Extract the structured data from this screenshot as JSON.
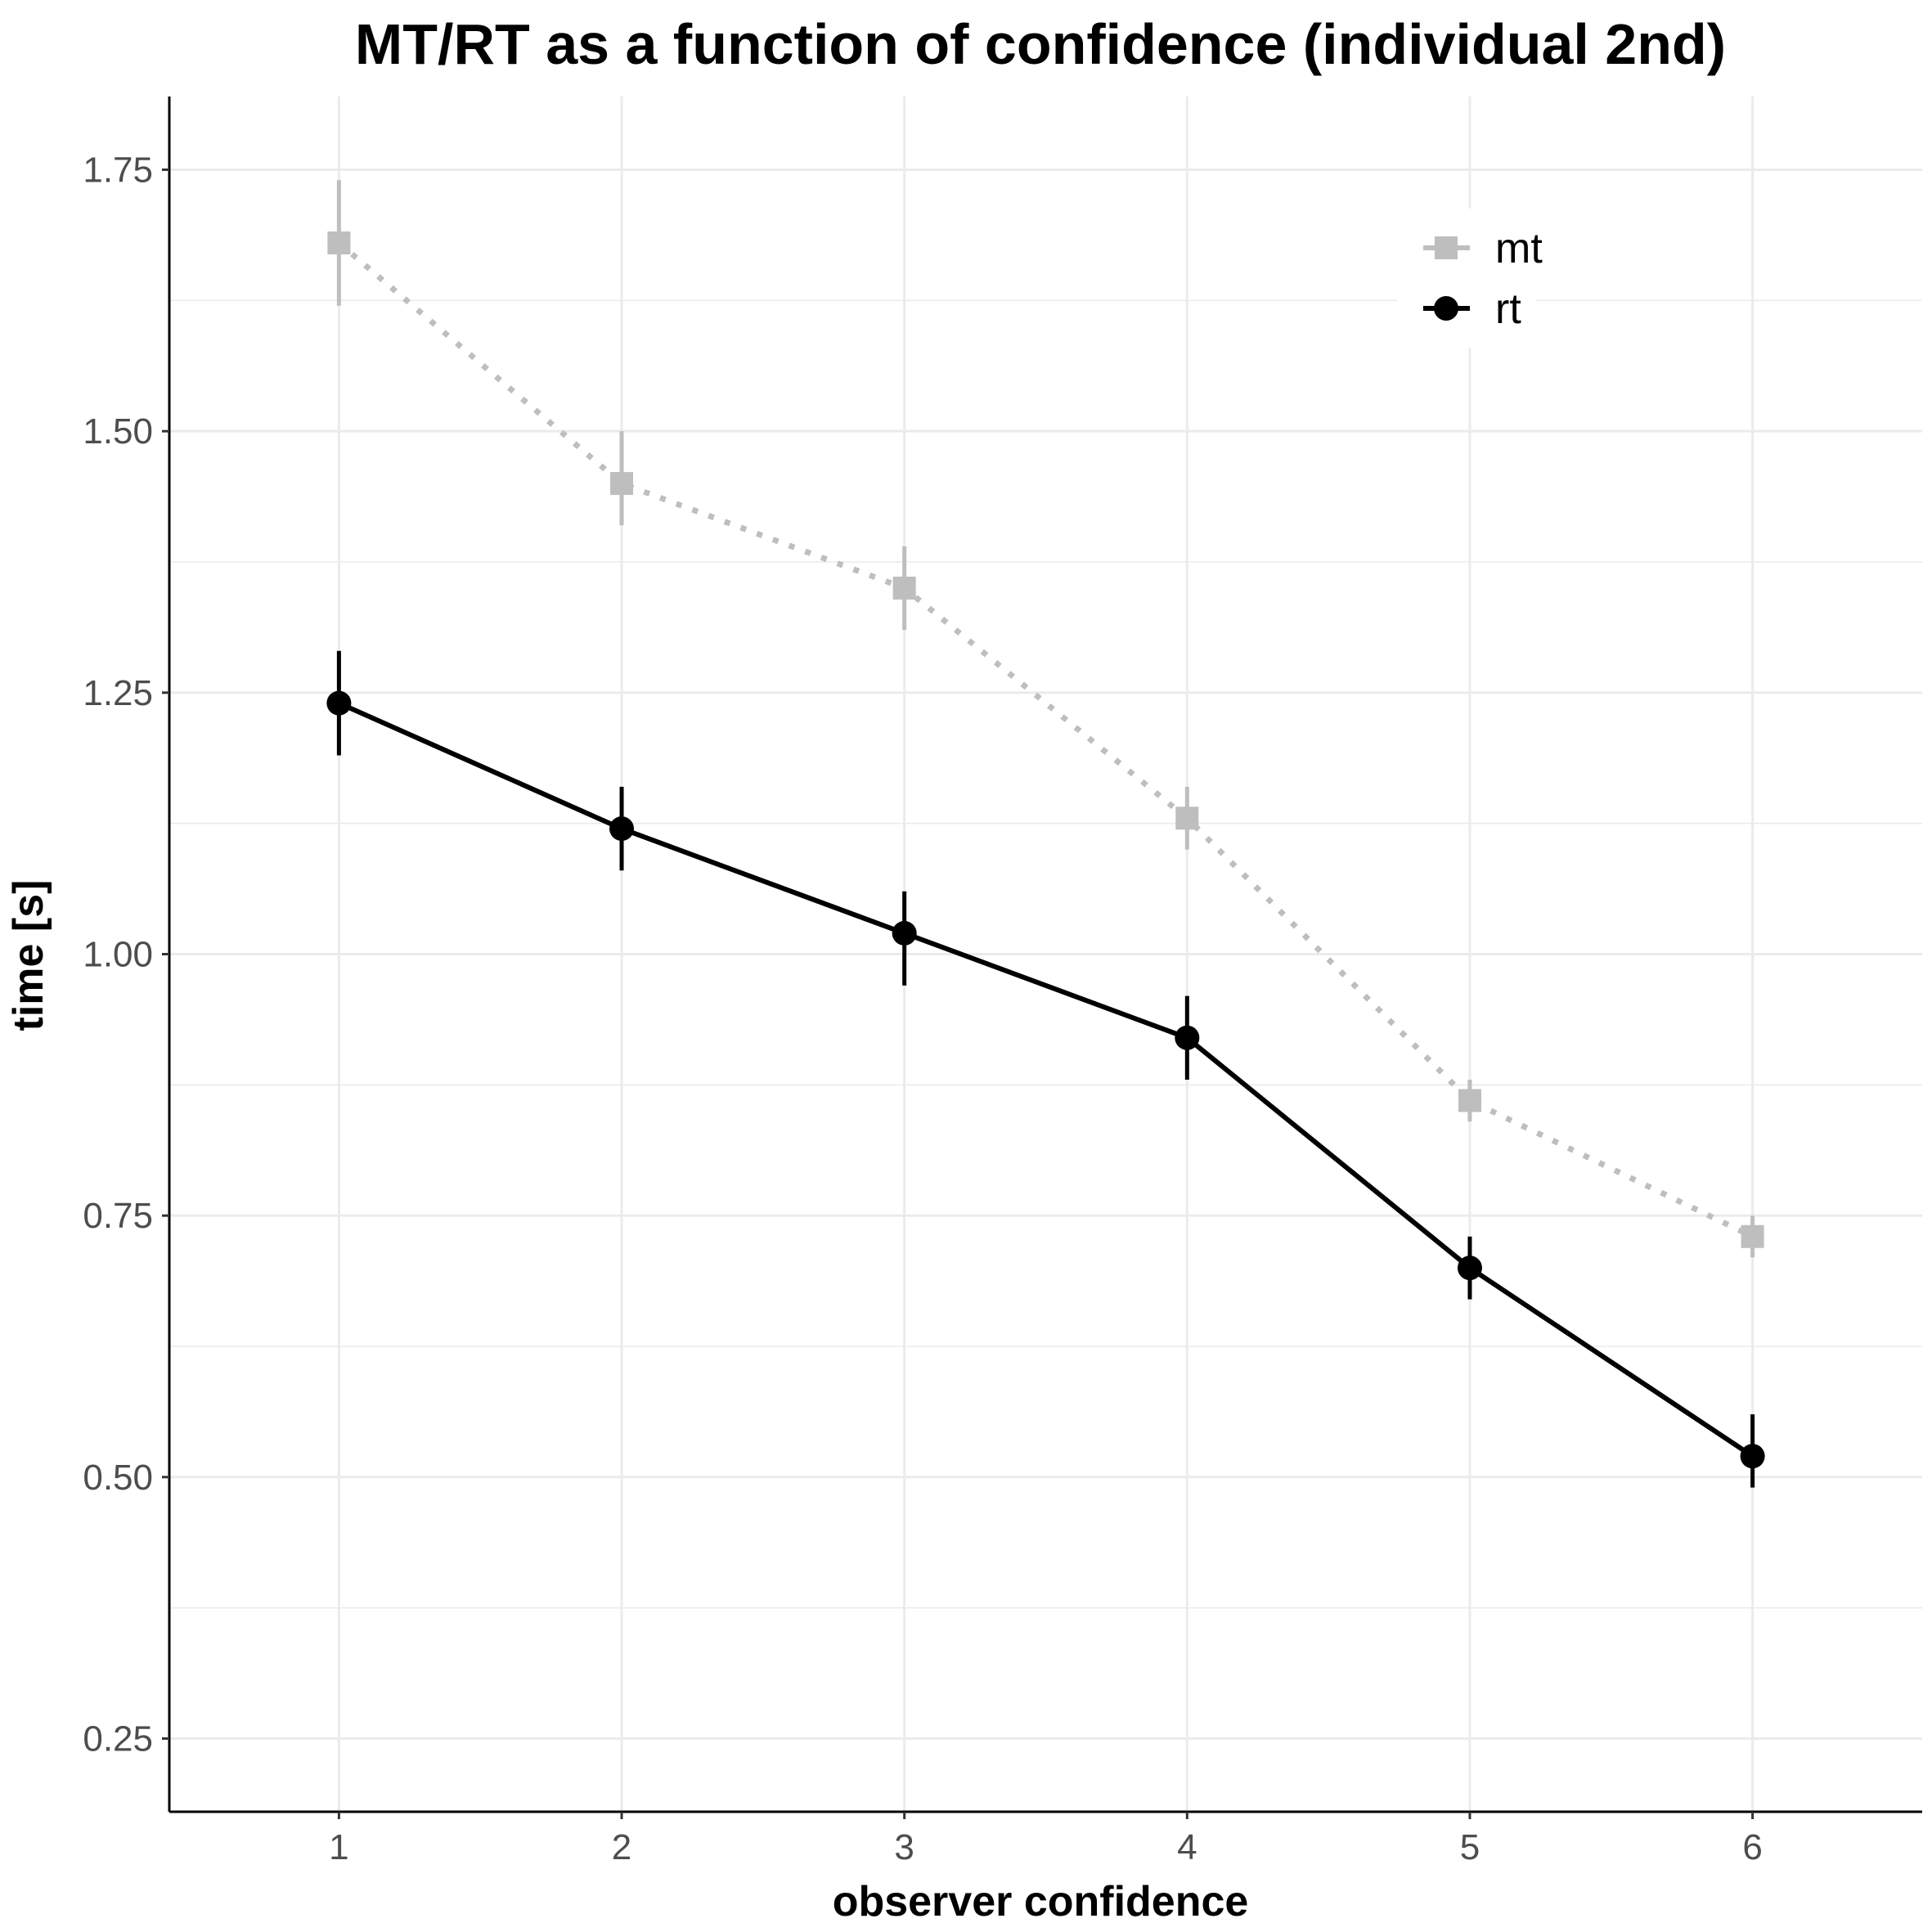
{
  "chart_data": {
    "type": "line",
    "title": "MT/RT as a function of confidence (individual 2nd)",
    "xlabel": "observer confidence",
    "ylabel": "time [s]",
    "x": [
      1,
      2,
      3,
      4,
      5,
      6
    ],
    "x_tick_labels": [
      "1",
      "2",
      "3",
      "4",
      "5",
      "6"
    ],
    "y_tick_labels": [
      "0.25",
      "0.50",
      "0.75",
      "1.00",
      "1.25",
      "1.50",
      "1.75"
    ],
    "y_ticks": [
      0.25,
      0.5,
      0.75,
      1.0,
      1.25,
      1.5,
      1.75
    ],
    "xlim": [
      0.4,
      6.6
    ],
    "ylim": [
      0.18,
      1.82
    ],
    "grid": true,
    "legend_position": "top-right",
    "series": [
      {
        "name": "mt",
        "color": "#bebebe",
        "marker": "square",
        "line_style": "dotted",
        "values": [
          1.68,
          1.45,
          1.35,
          1.13,
          0.86,
          0.73
        ],
        "error_low": [
          1.62,
          1.41,
          1.31,
          1.1,
          0.84,
          0.71
        ],
        "error_high": [
          1.74,
          1.5,
          1.39,
          1.16,
          0.88,
          0.75
        ]
      },
      {
        "name": "rt",
        "color": "#000000",
        "marker": "circle",
        "line_style": "solid",
        "values": [
          1.24,
          1.12,
          1.02,
          0.92,
          0.7,
          0.52
        ],
        "error_low": [
          1.19,
          1.08,
          0.97,
          0.88,
          0.67,
          0.49
        ],
        "error_high": [
          1.29,
          1.16,
          1.06,
          0.96,
          0.73,
          0.56
        ]
      }
    ]
  }
}
